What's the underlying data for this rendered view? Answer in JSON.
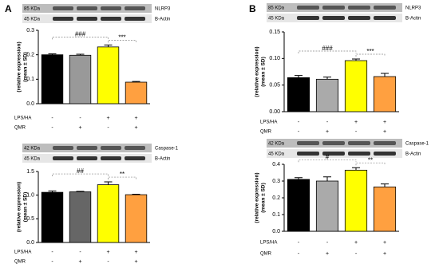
{
  "panel_labels": [
    "A",
    "B"
  ],
  "chart_data": [
    {
      "type": "bar",
      "blot": [
        {
          "size": "85 KDa",
          "protein": "NLRP3"
        },
        {
          "size": "45 KDa",
          "protein": "B-Actin"
        }
      ],
      "ylabel": [
        "(relative expression)",
        "(mean ± SD)"
      ],
      "values": [
        0.2,
        0.198,
        0.232,
        0.088
      ],
      "errors": [
        0.004,
        0.004,
        0.008,
        0.003
      ],
      "colors": [
        "#000000",
        "#999999",
        "#ffff00",
        "#ffa040"
      ],
      "ylim": [
        0,
        0.3
      ],
      "yticks": [
        {
          "value": 0,
          "label": "0.0"
        },
        0.1,
        0.2,
        0.3
      ],
      "significance": [
        "###",
        "***"
      ],
      "conditions": [
        {
          "name": "LPS/HA",
          "values": [
            "-",
            "-",
            "+",
            "+"
          ]
        },
        {
          "name": "QMR",
          "values": [
            "-",
            "+",
            "-",
            "+"
          ]
        }
      ]
    },
    {
      "type": "bar",
      "blot": [
        {
          "size": "42 KDa",
          "protein": "Caspase-1"
        },
        {
          "size": "45 KDa",
          "protein": "B-Actin"
        }
      ],
      "ylabel": [
        "(relative expression)",
        "(mean ± SD)"
      ],
      "values": [
        1.06,
        1.07,
        1.22,
        1.01
      ],
      "errors": [
        0.03,
        0.01,
        0.06,
        0.01
      ],
      "colors": [
        "#000000",
        "#666666",
        "#ffff00",
        "#ffa040"
      ],
      "ylim": [
        0,
        1.5
      ],
      "yticks": [
        {
          "value": 0,
          "label": "0.0"
        },
        0.5,
        {
          "value": 1,
          "label": "1.0"
        },
        1.5
      ],
      "significance": [
        "##",
        "**"
      ],
      "conditions": [
        {
          "name": "LPS/HA",
          "values": [
            "-",
            "-",
            "+",
            "+"
          ]
        },
        {
          "name": "QMR",
          "values": [
            "-",
            "+",
            "-",
            "+"
          ]
        }
      ]
    },
    {
      "type": "bar",
      "blot": [
        {
          "size": "85 KDa",
          "protein": "NLRP3"
        },
        {
          "size": "45 KDa",
          "protein": "B-Actin"
        }
      ],
      "ylabel": [
        "(relative expression)",
        "(mean ± SD)"
      ],
      "values": [
        0.064,
        0.061,
        0.096,
        0.066
      ],
      "errors": [
        0.004,
        0.004,
        0.003,
        0.006
      ],
      "colors": [
        "#000000",
        "#aaaaaa",
        "#ffff00",
        "#ffa040"
      ],
      "ylim": [
        0,
        0.15
      ],
      "yticks": [
        {
          "value": 0,
          "label": "0.00"
        },
        {
          "value": 0.05,
          "label": "0.05"
        },
        {
          "value": 0.1,
          "label": "0.10"
        },
        {
          "value": 0.15,
          "label": "0.15"
        }
      ],
      "significance": [
        "###",
        "***"
      ],
      "conditions": [
        {
          "name": "LPS/HA",
          "values": [
            "-",
            "-",
            "+",
            "+"
          ]
        },
        {
          "name": "QMR",
          "values": [
            "-",
            "+",
            "-",
            "+"
          ]
        }
      ]
    },
    {
      "type": "bar",
      "blot": [
        {
          "size": "42 KDa",
          "protein": "Caspase-1"
        },
        {
          "size": "45 KDa",
          "protein": "B-Actin"
        }
      ],
      "ylabel": [
        "(relative expression)",
        "(mean ± SD)"
      ],
      "values": [
        0.31,
        0.3,
        0.365,
        0.265
      ],
      "errors": [
        0.01,
        0.025,
        0.015,
        0.018
      ],
      "colors": [
        "#000000",
        "#aaaaaa",
        "#ffff00",
        "#ffa040"
      ],
      "ylim": [
        0,
        0.4
      ],
      "yticks": [
        {
          "value": 0,
          "label": "0.0"
        },
        0.1,
        0.2,
        0.3,
        0.4
      ],
      "significance": [
        "#",
        "**"
      ],
      "conditions": [
        {
          "name": "LPS/HA",
          "values": [
            "-",
            "-",
            "+",
            "+"
          ]
        },
        {
          "name": "QMR",
          "values": [
            "-",
            "+",
            "-",
            "+"
          ]
        }
      ]
    }
  ]
}
